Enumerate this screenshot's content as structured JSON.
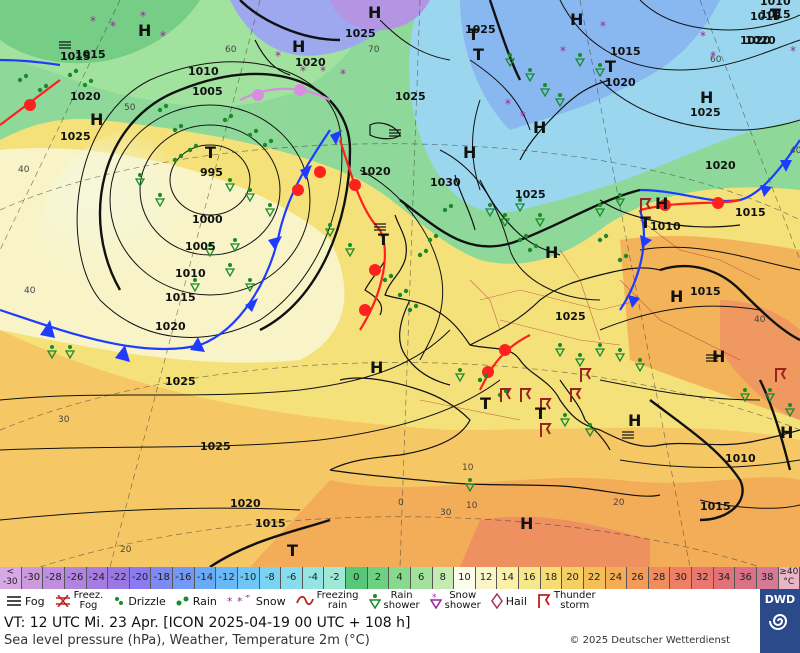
{
  "scale": {
    "cells": [
      {
        "label": "<\n-30",
        "color": "#d7a8e6"
      },
      {
        "label": "-30",
        "color": "#cc99dd"
      },
      {
        "label": "-28",
        "color": "#c08ee0"
      },
      {
        "label": "-26",
        "color": "#b184e0"
      },
      {
        "label": "-24",
        "color": "#a57ce2"
      },
      {
        "label": "-22",
        "color": "#9a78e4"
      },
      {
        "label": "-20",
        "color": "#8a7cf0"
      },
      {
        "label": "-18",
        "color": "#7d8af3"
      },
      {
        "label": "-16",
        "color": "#7399f6"
      },
      {
        "label": "-14",
        "color": "#6aa8f8"
      },
      {
        "label": "-12",
        "color": "#69b8f8"
      },
      {
        "label": "-10",
        "color": "#6fc6f5"
      },
      {
        "label": "-8",
        "color": "#7ad3f1"
      },
      {
        "label": "-6",
        "color": "#86dded"
      },
      {
        "label": "-4",
        "color": "#94e4e4"
      },
      {
        "label": "-2",
        "color": "#a0e8d6"
      },
      {
        "label": "0",
        "color": "#58c77a"
      },
      {
        "label": "2",
        "color": "#6ed083"
      },
      {
        "label": "4",
        "color": "#86d98e"
      },
      {
        "label": "6",
        "color": "#a3e29d"
      },
      {
        "label": "8",
        "color": "#c3ebb2"
      },
      {
        "label": "10",
        "color": "#fcfcec"
      },
      {
        "label": "12",
        "color": "#fbf6c9"
      },
      {
        "label": "14",
        "color": "#faf0a8"
      },
      {
        "label": "16",
        "color": "#f8e78a"
      },
      {
        "label": "18",
        "color": "#f7dc73"
      },
      {
        "label": "20",
        "color": "#f6cf62"
      },
      {
        "label": "22",
        "color": "#f5bf58"
      },
      {
        "label": "24",
        "color": "#f4ad55"
      },
      {
        "label": "26",
        "color": "#f29c58"
      },
      {
        "label": "28",
        "color": "#ef8d5e"
      },
      {
        "label": "30",
        "color": "#ec7f66"
      },
      {
        "label": "32",
        "color": "#e9766f"
      },
      {
        "label": "34",
        "color": "#e27278"
      },
      {
        "label": "36",
        "color": "#db7186"
      },
      {
        "label": "38",
        "color": "#d47a95"
      },
      {
        "label": "≥40\n°C",
        "color": "#e9b5c6"
      }
    ]
  },
  "legend": {
    "fog": "Fog",
    "freez_fog": "Freez.\nFog",
    "drizzle": "Drizzle",
    "rain": "Rain",
    "snow": "Snow",
    "freezing_rain": "Freezing\nrain",
    "rain_shower": "Rain\nshower",
    "snow_shower": "Snow\nshower",
    "hail": "Hail",
    "thunderstorm": "Thunder\nstorm"
  },
  "footer": {
    "valid_time": "VT: 12 UTC Mi.  23 Apr. [ICON 2025-04-19  00 UTC + 108 h]",
    "description": "Sea level pressure (hPa), Weather, Temperature 2m (°C)",
    "copyright": "© 2025 Deutscher Wetterdienst",
    "logo": "DWD"
  },
  "map": {
    "pressure_labels": [
      "1015",
      "1010",
      "1005",
      "995",
      "1000",
      "1005",
      "1010",
      "1015",
      "1020",
      "1025",
      "1025",
      "1020",
      "1015",
      "1020",
      "1025",
      "1025",
      "1030",
      "1025",
      "1025",
      "1020",
      "1025",
      "1015",
      "1015",
      "1020",
      "1025",
      "1020",
      "1010",
      "1015",
      "1015",
      "1010",
      "1015",
      "1020",
      "1025",
      "1015",
      "1020",
      "1010",
      "1015",
      "1020"
    ],
    "centers": [
      "H",
      "H",
      "H",
      "T",
      "T",
      "H",
      "H",
      "H",
      "H",
      "T",
      "T",
      "H",
      "H",
      "H",
      "H",
      "H",
      "T",
      "T",
      "H",
      "T",
      "H",
      "H",
      "T",
      "T",
      "H",
      "T"
    ],
    "temp_labels": [
      "40",
      "50",
      "60",
      "70",
      "40",
      "30",
      "20",
      "60",
      "40",
      "10",
      "0",
      "10",
      "20",
      "30",
      "40"
    ]
  }
}
